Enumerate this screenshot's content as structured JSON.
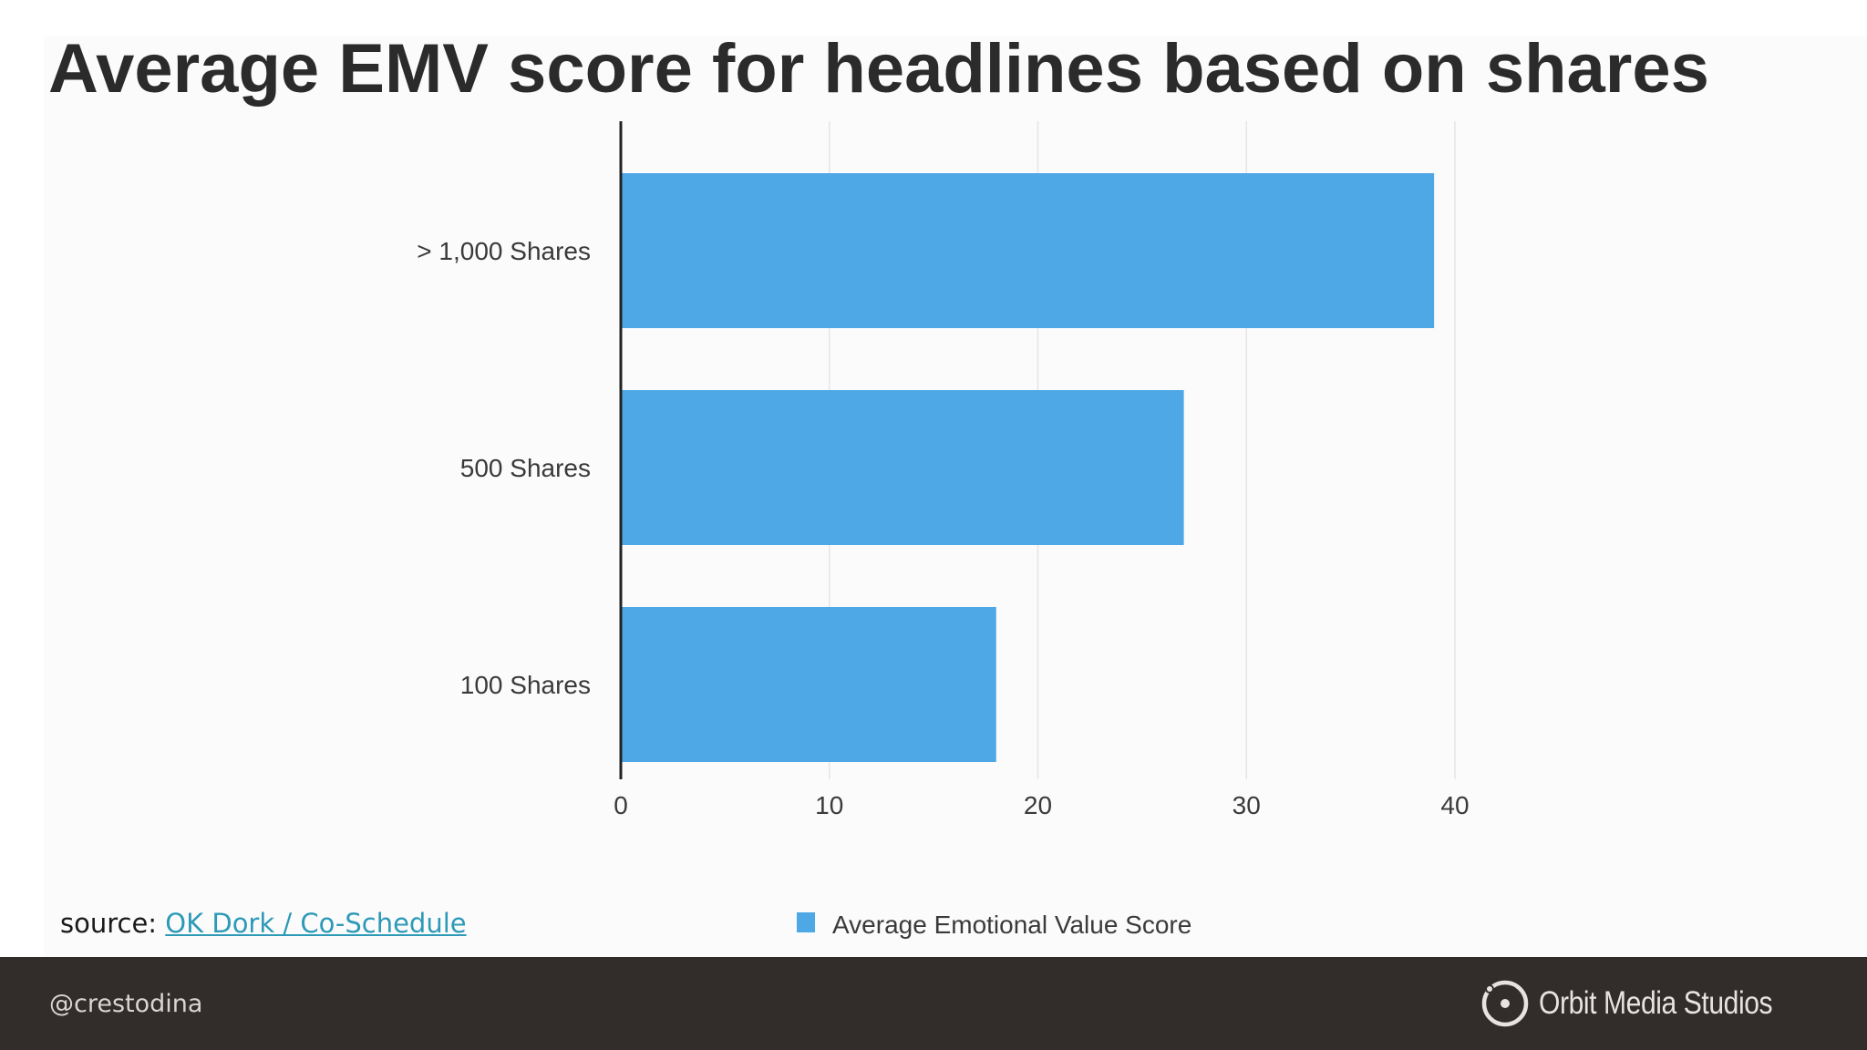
{
  "slide": {
    "title": "Average EMV score for headlines based on shares",
    "source_prefix": "source: ",
    "source_link_text": "OK Dork / Co-Schedule"
  },
  "footer": {
    "handle": "@crestodina",
    "brand_name": "Orbit Media Studios",
    "logo_icon": "orbit-circle-icon"
  },
  "colors": {
    "bar": "#4ea8e6",
    "footer_bg": "#322c2b",
    "link": "#2c9ab7",
    "title": "#2c2b2c"
  },
  "chart_data": {
    "type": "bar",
    "orientation": "horizontal",
    "categories": [
      "> 1,000 Shares",
      "500 Shares",
      "100 Shares"
    ],
    "series": [
      {
        "name": "Average Emotional Value Score",
        "values": [
          39,
          27,
          18
        ]
      }
    ],
    "xlim": [
      0,
      40
    ],
    "x_ticks": [
      0,
      10,
      20,
      30,
      40
    ],
    "grid": "vertical",
    "legend": "bottom-center",
    "title": "",
    "xlabel": "",
    "ylabel": ""
  }
}
